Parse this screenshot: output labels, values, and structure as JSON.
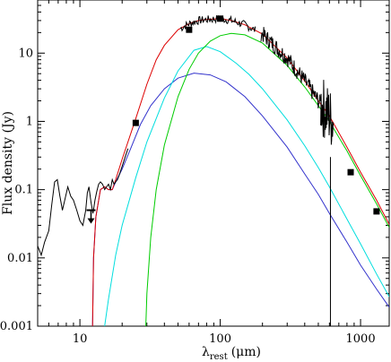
{
  "chart_data": {
    "type": "line",
    "xlabel_main": "λ",
    "xlabel_sub": "rest",
    "xlabel_unit": "(μm)",
    "ylabel": "Flux density (Jy)",
    "xscale": "log",
    "yscale": "log",
    "xlim": [
      5,
      1600
    ],
    "ylim": [
      0.001,
      60
    ],
    "x_ticks": [
      {
        "value": 10,
        "label": "10"
      },
      {
        "value": 100,
        "label": "100"
      },
      {
        "value": 1000,
        "label": "1000"
      }
    ],
    "y_ticks": [
      {
        "value": 0.001,
        "label": "0.001"
      },
      {
        "value": 0.01,
        "label": "0.01"
      },
      {
        "value": 0.1,
        "label": "0.1"
      },
      {
        "value": 1,
        "label": "1"
      },
      {
        "value": 10,
        "label": "10"
      }
    ],
    "colors": {
      "total": "#dd0000",
      "cyan": "#00dede",
      "green": "#00cc00",
      "blue": "#3333cc",
      "spectrum": "#000000",
      "points": "#000000"
    },
    "series": [
      {
        "color_key": "blue",
        "x": [
          12.3,
          12.5,
          13,
          14,
          15,
          16,
          17,
          18,
          20,
          23,
          27,
          32,
          40,
          50,
          65,
          85,
          110,
          150,
          200,
          300,
          400,
          500,
          600,
          800,
          1000,
          1300,
          1600
        ],
        "y": [
          0.001,
          0.01,
          0.04,
          0.1,
          0.11,
          0.1,
          0.1,
          0.13,
          0.2,
          0.4,
          0.9,
          1.7,
          3,
          4.3,
          5.1,
          4.8,
          3.8,
          2.3,
          1.2,
          0.42,
          0.17,
          0.085,
          0.045,
          0.017,
          0.0078,
          0.0035,
          0.0019
        ]
      },
      {
        "color_key": "cyan",
        "x": [
          15,
          16,
          18,
          20,
          25,
          30,
          40,
          50,
          65,
          80,
          100,
          130,
          160,
          200,
          300,
          400,
          500,
          600,
          800,
          1000,
          1300,
          1600
        ],
        "y": [
          0.001,
          0.0025,
          0.011,
          0.03,
          0.15,
          0.5,
          2.2,
          5.5,
          11,
          12.5,
          10.5,
          7.1,
          4.9,
          3,
          1.05,
          0.44,
          0.21,
          0.11,
          0.037,
          0.016,
          0.0058,
          0.0027
        ]
      },
      {
        "color_key": "green",
        "x": [
          29.5,
          30,
          32,
          35,
          40,
          50,
          60,
          70,
          85,
          100,
          120,
          150,
          200,
          300,
          400,
          500,
          600,
          800,
          1000,
          1300,
          1600
        ],
        "y": [
          0.001,
          0.003,
          0.02,
          0.1,
          0.45,
          2.3,
          5.8,
          10,
          15,
          18,
          19.5,
          18.5,
          14,
          6.6,
          3.2,
          1.7,
          1.0,
          0.37,
          0.16,
          0.062,
          0.028
        ]
      },
      {
        "color_key": "total",
        "x": [
          12.3,
          12.5,
          13,
          14,
          15,
          16,
          17,
          18,
          20,
          22,
          25,
          30,
          35,
          40,
          50,
          60,
          70,
          80,
          100,
          120,
          150,
          200,
          300,
          400,
          500,
          600,
          800,
          1000,
          1300,
          1600
        ],
        "y": [
          0.001,
          0.01,
          0.04,
          0.1,
          0.11,
          0.1,
          0.1,
          0.14,
          0.28,
          0.5,
          1.1,
          3.5,
          8,
          13,
          22,
          27,
          30,
          31,
          32,
          30,
          26,
          19,
          8.5,
          3.9,
          2.0,
          1.2,
          0.42,
          0.18,
          0.07,
          0.031
        ]
      }
    ],
    "spectrum": {
      "color_key": "spectrum",
      "x": [
        5.0,
        5.3,
        5.6,
        6.0,
        6.3,
        6.6,
        6.9,
        7.2,
        7.5,
        7.8,
        8.2,
        8.6,
        9.0,
        9.5,
        10.0,
        10.5,
        11.0,
        11.3,
        11.6,
        12.0,
        12.4,
        12.8,
        13.2,
        13.6,
        14.0,
        14.5,
        15.0,
        15.5,
        16.0,
        16.5,
        17.0,
        17.5,
        18.0,
        18.5,
        19.0,
        20.0,
        21.0,
        22.0
      ],
      "y": [
        0.015,
        0.011,
        0.017,
        0.025,
        0.06,
        0.13,
        0.14,
        0.08,
        0.05,
        0.07,
        0.11,
        0.08,
        0.07,
        0.05,
        0.035,
        0.03,
        0.05,
        0.09,
        0.11,
        0.065,
        0.045,
        0.07,
        0.095,
        0.12,
        0.13,
        0.12,
        0.1,
        0.11,
        0.12,
        0.1,
        0.14,
        0.12,
        0.13,
        0.14,
        0.16,
        0.22,
        0.3,
        0.4
      ]
    },
    "photometry": [
      {
        "x": 25,
        "y": 0.95
      },
      {
        "x": 60,
        "y": 22
      },
      {
        "x": 100,
        "y": 32
      },
      {
        "x": 850,
        "y": 0.18
      },
      {
        "x": 1300,
        "y": 0.048
      }
    ],
    "upper_limits": [
      {
        "x": 12,
        "y": 0.05
      }
    ]
  }
}
